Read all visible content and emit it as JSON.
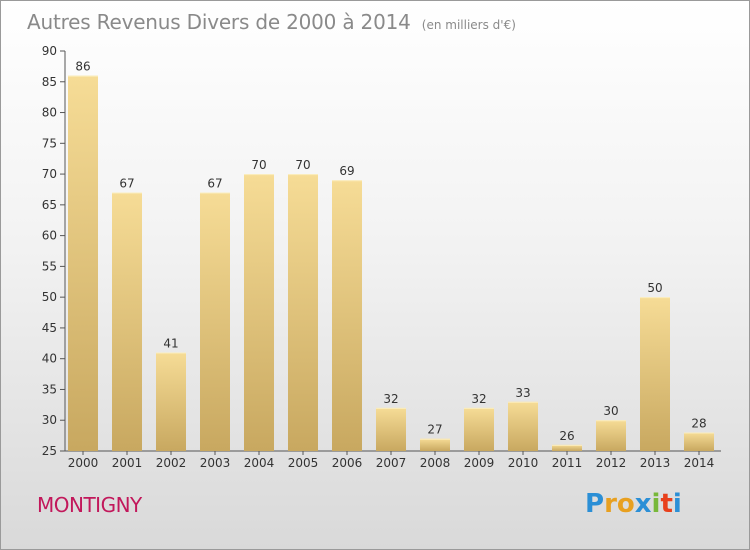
{
  "title": "Autres Revenus Divers de 2000 à 2014",
  "subtitle": "(en milliers d'€)",
  "city": "MONTIGNY",
  "logo": {
    "letters": [
      "P",
      "r",
      "o",
      "x",
      "i",
      "t",
      "i"
    ],
    "colors": [
      "#2b8fd6",
      "#e8a020",
      "#e8a020",
      "#2b8fd6",
      "#78b83a",
      "#e8401c",
      "#2b8fd6"
    ]
  },
  "colors": {
    "bar_top": "#f6dc96",
    "bar_bottom": "#c8a860",
    "axis": "#555555",
    "text": "#333333"
  },
  "chart_data": {
    "type": "bar",
    "title": "Autres Revenus Divers de 2000 à 2014",
    "subtitle": "(en milliers d'€)",
    "categories": [
      "2000",
      "2001",
      "2002",
      "2003",
      "2004",
      "2005",
      "2006",
      "2007",
      "2008",
      "2009",
      "2010",
      "2011",
      "2012",
      "2013",
      "2014"
    ],
    "values": [
      86,
      67,
      41,
      67,
      70,
      70,
      69,
      32,
      27,
      32,
      33,
      26,
      30,
      50,
      28
    ],
    "ylim": [
      25,
      90
    ],
    "yticks": [
      25,
      30,
      35,
      40,
      45,
      50,
      55,
      60,
      65,
      70,
      75,
      80,
      85,
      90
    ],
    "grid": false,
    "legend": "none"
  }
}
